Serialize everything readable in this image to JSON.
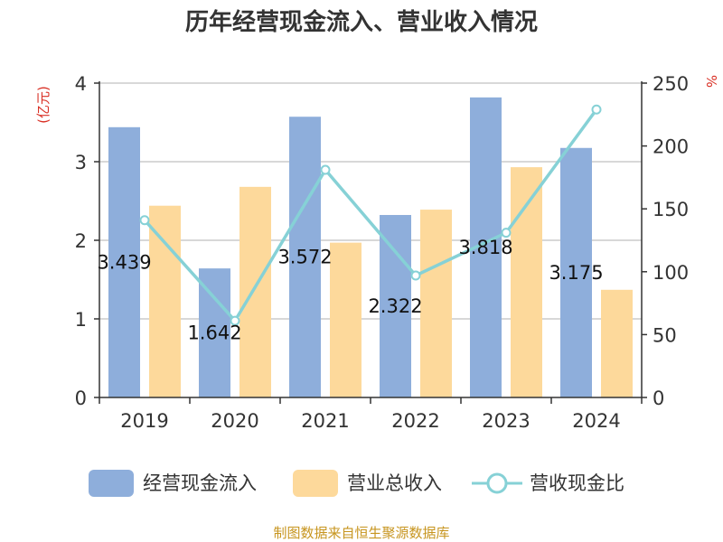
{
  "chart_data": {
    "type": "bar",
    "title": "历年经营现金流入、营业收入情况",
    "categories": [
      "2019",
      "2020",
      "2021",
      "2022",
      "2023",
      "2024"
    ],
    "series": [
      {
        "name": "经营现金流入",
        "axis": "left",
        "kind": "bar",
        "color": "#8eaedb",
        "values": [
          3.439,
          1.642,
          3.572,
          2.322,
          3.818,
          3.175
        ],
        "labels": [
          "3.439",
          "1.642",
          "3.572",
          "2.322",
          "3.818",
          "3.175"
        ]
      },
      {
        "name": "营业总收入",
        "axis": "left",
        "kind": "bar",
        "color": "#fdd99b",
        "values": [
          2.44,
          2.68,
          1.97,
          2.39,
          2.93,
          1.37
        ]
      },
      {
        "name": "营收现金比",
        "axis": "right",
        "kind": "line",
        "color": "#86d1d6",
        "values": [
          141,
          61,
          181,
          97,
          131,
          229
        ]
      }
    ],
    "left_axis": {
      "unit": "(亿元)",
      "ylim": [
        0,
        4
      ],
      "ticks": [
        "0",
        "1",
        "2",
        "3",
        "4"
      ]
    },
    "right_axis": {
      "unit": "%",
      "ylim": [
        0,
        250
      ],
      "ticks": [
        "0",
        "50",
        "100",
        "150",
        "200",
        "250"
      ]
    },
    "legend_position": "bottom",
    "grid": true
  },
  "source": "制图数据来自恒生聚源数据库"
}
